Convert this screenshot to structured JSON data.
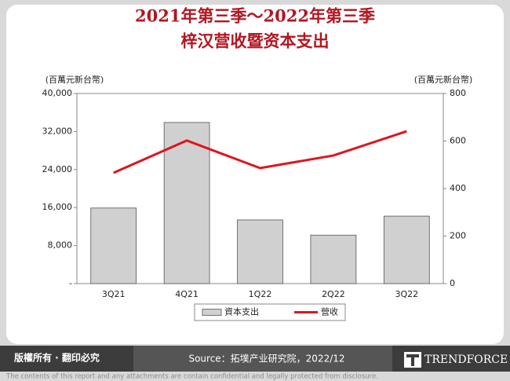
{
  "chart_data": {
    "type": "bar-line",
    "title": [
      "2021年第三季～2022年第三季",
      "梓汉营收暨资本支出"
    ],
    "y_label": "(百萬元新台幣)",
    "y2_label": "(百萬元新台幣)",
    "categories": [
      "3Q21",
      "4Q21",
      "1Q22",
      "2Q22",
      "3Q22"
    ],
    "series": [
      {
        "name": "資本支出",
        "type": "bar",
        "color": "#d0d0d0",
        "values": [
          15900,
          33900,
          13400,
          10200,
          14200
        ]
      },
      {
        "name": "營收",
        "type": "line",
        "color": "#e0141c",
        "axis": "y2",
        "values": [
          466,
          602,
          486,
          539,
          641
        ]
      }
    ],
    "ylim": [
      0,
      40000
    ],
    "yticks": [
      {
        "value": 0,
        "label": "-"
      },
      {
        "value": 8000,
        "label": "8,000"
      },
      {
        "value": 16000,
        "label": "16,000"
      },
      {
        "value": 24000,
        "label": "24,000"
      },
      {
        "value": 32000,
        "label": "32,000"
      },
      {
        "value": 40000,
        "label": "40,000"
      }
    ],
    "y2lim": [
      0,
      800
    ],
    "y2ticks": [
      0,
      200,
      400,
      600,
      800
    ],
    "legend": "bottom"
  },
  "footer": {
    "rights": "版權所有 · 翻印必究",
    "source": "Source：拓墣产业研究院，2022/12",
    "brand": "TRENDFORCE",
    "disclaimer": "The contents of this report and any attachments are contain confidential and legally protected from disclosure."
  }
}
